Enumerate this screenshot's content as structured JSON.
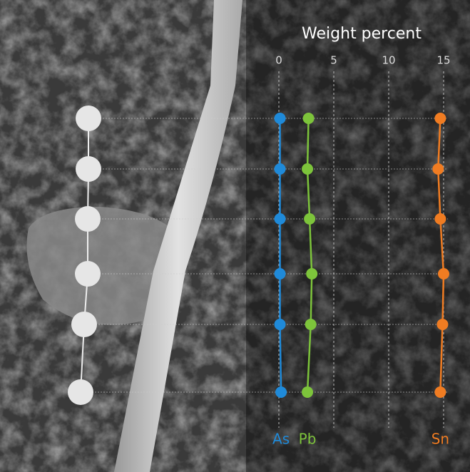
{
  "chart_data": {
    "type": "line",
    "title": "Weight percent",
    "xlim": [
      0,
      15
    ],
    "xticks": [
      0,
      5,
      10,
      15
    ],
    "grid": true,
    "series": [
      {
        "name": "As",
        "color": "#1f8ad9",
        "values": [
          0.1,
          0.1,
          0.1,
          0.1,
          0.1,
          0.2
        ]
      },
      {
        "name": "Pb",
        "color": "#7dc43b",
        "values": [
          2.7,
          2.6,
          2.8,
          3.0,
          2.9,
          2.6
        ]
      },
      {
        "name": "Sn",
        "color": "#f07c22",
        "values": [
          14.7,
          14.5,
          14.7,
          15.0,
          14.9,
          14.7
        ]
      }
    ]
  }
}
